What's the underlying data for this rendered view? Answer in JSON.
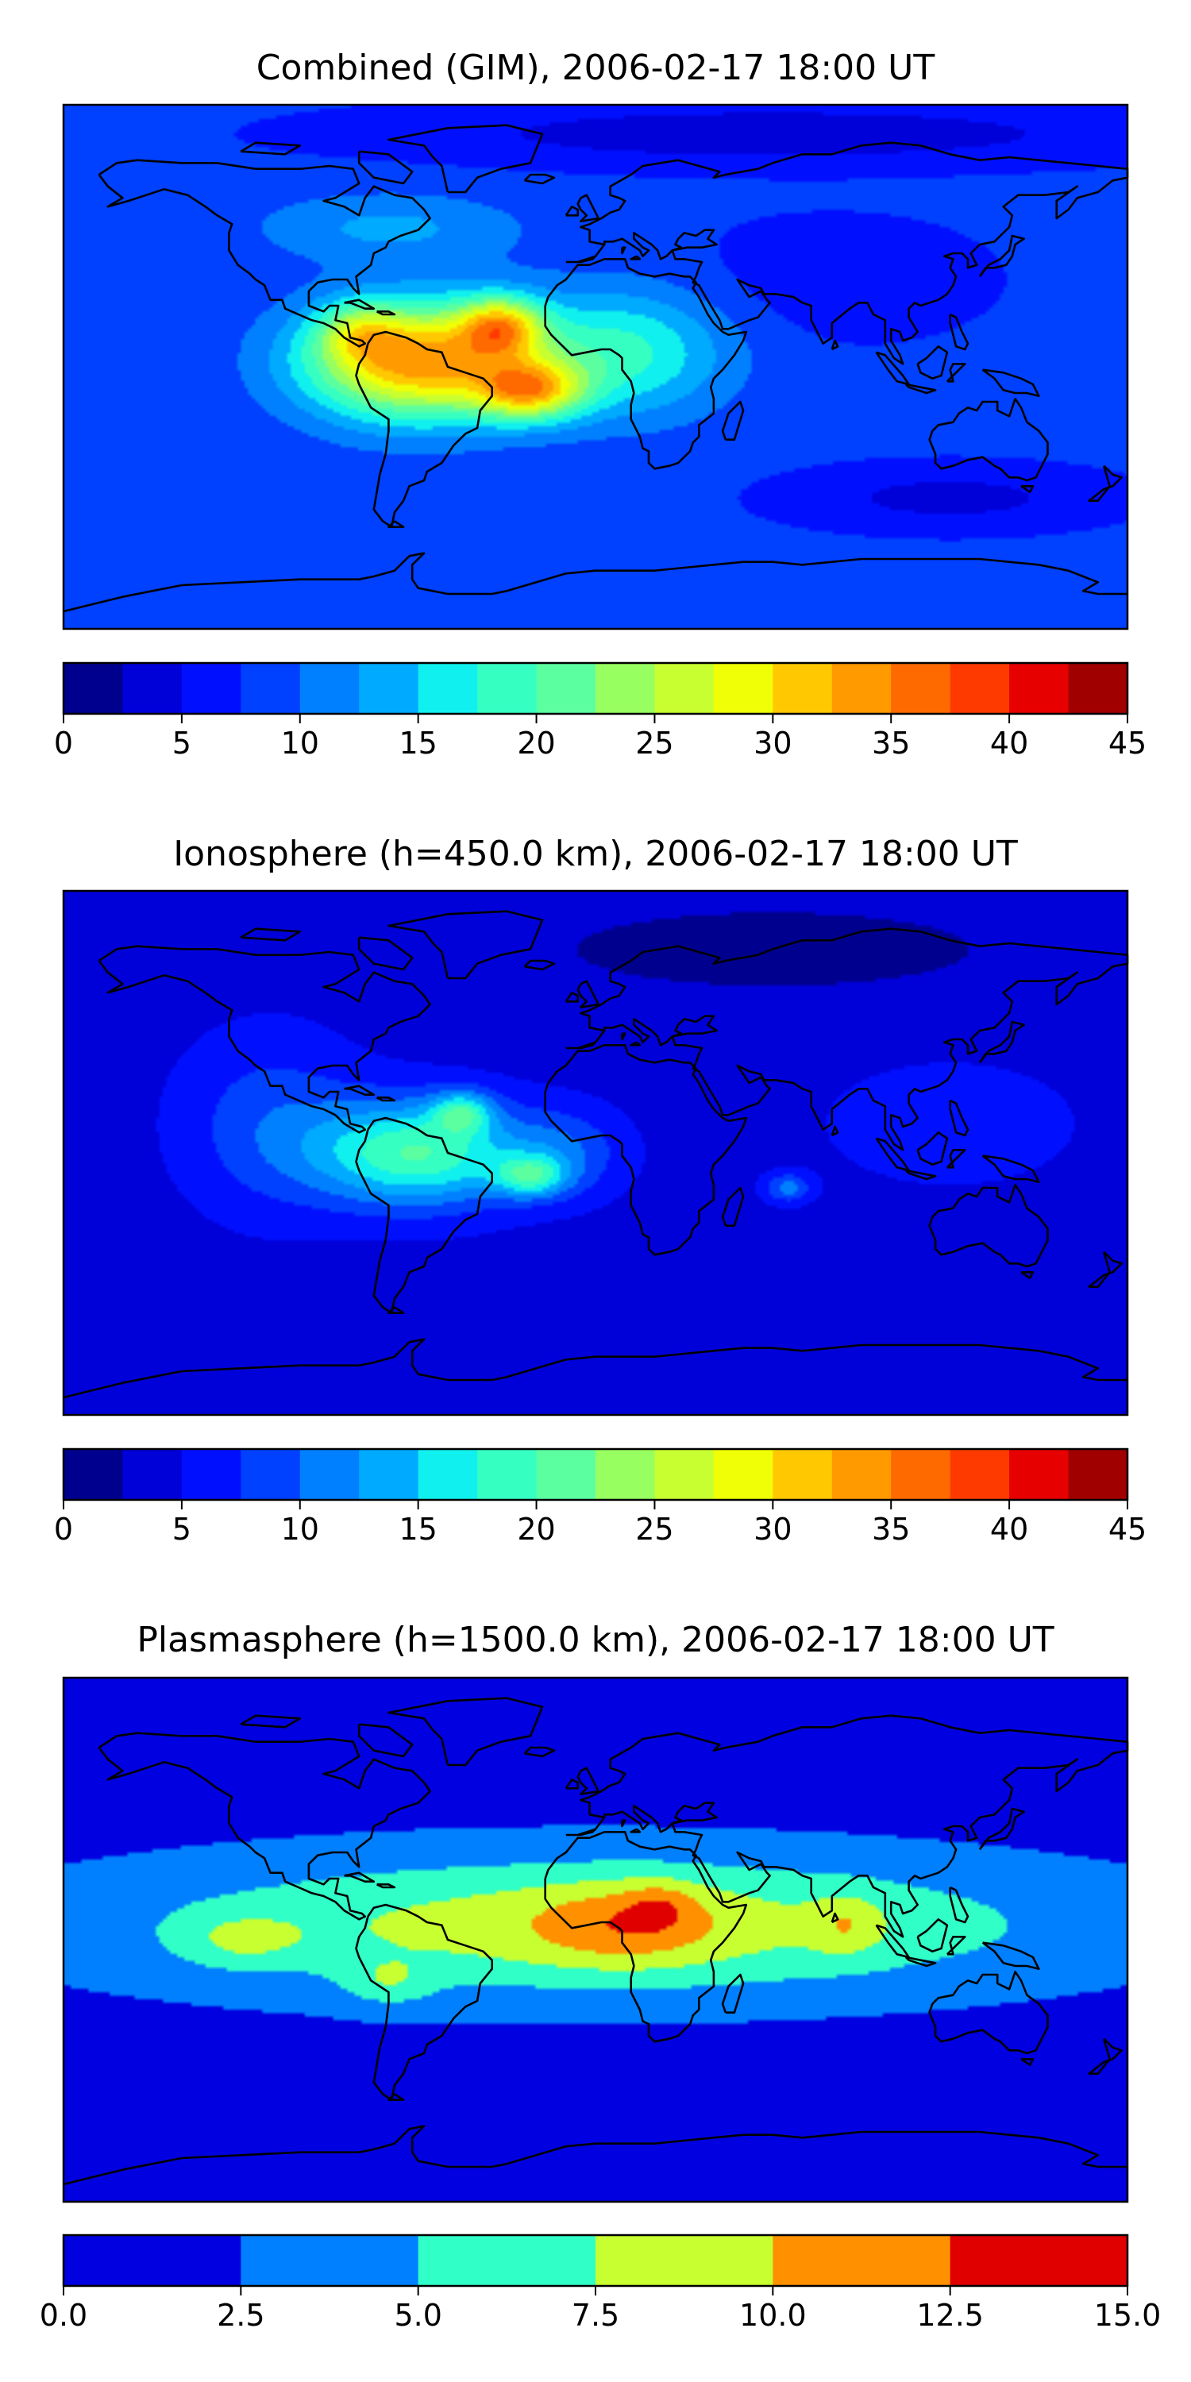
{
  "panels": [
    {
      "title": "Combined (GIM), 2006-02-17 18:00 UT",
      "colorbar": {
        "levels": [
          0,
          2.5,
          5,
          7.5,
          10,
          12.5,
          15,
          17.5,
          20,
          22.5,
          25,
          27.5,
          30,
          32.5,
          35,
          37.5,
          40,
          42.5,
          45
        ],
        "colors": [
          "#00008f",
          "#0000d9",
          "#0010ff",
          "#0040ff",
          "#0080ff",
          "#00aaff",
          "#10f0ee",
          "#36ffc2",
          "#5cffa0",
          "#98ff60",
          "#c8ff30",
          "#f0ff06",
          "#ffc800",
          "#ff9a00",
          "#ff6a00",
          "#ff3a00",
          "#e60000",
          "#a00000"
        ],
        "tick_values": [
          0,
          5,
          10,
          15,
          20,
          25,
          30,
          35,
          40,
          45
        ],
        "tick_labels": [
          "0",
          "5",
          "10",
          "15",
          "20",
          "25",
          "30",
          "35",
          "40",
          "45"
        ]
      },
      "field": {
        "background": 8,
        "blobs": [
          {
            "lon": -60,
            "lat": 2,
            "amp": 26,
            "slon": 38,
            "slat": 20
          },
          {
            "lon": -32,
            "lat": 14,
            "amp": 16,
            "slon": 14,
            "slat": 10
          },
          {
            "lon": -22,
            "lat": -8,
            "amp": 18,
            "slon": 18,
            "slat": 10
          },
          {
            "lon": -80,
            "lat": 12,
            "amp": 8,
            "slon": 14,
            "slat": 10
          },
          {
            "lon": 10,
            "lat": 5,
            "amp": 10,
            "slon": 35,
            "slat": 22
          },
          {
            "lon": -70,
            "lat": 48,
            "amp": 5,
            "slon": 45,
            "slat": 12
          },
          {
            "lon": 120,
            "lat": -45,
            "amp": -4,
            "slon": 50,
            "slat": 10
          },
          {
            "lon": 60,
            "lat": 80,
            "amp": -5,
            "slon": 120,
            "slat": 10
          },
          {
            "lon": 80,
            "lat": 30,
            "amp": -2,
            "slon": 50,
            "slat": 20
          }
        ]
      }
    },
    {
      "title": "Ionosphere  (h=450.0 km), 2006-02-17 18:00 UT",
      "colorbar": {
        "levels": [
          0,
          2.5,
          5,
          7.5,
          10,
          12.5,
          15,
          17.5,
          20,
          22.5,
          25,
          27.5,
          30,
          32.5,
          35,
          37.5,
          40,
          42.5,
          45
        ],
        "colors": [
          "#00008f",
          "#0000d9",
          "#0010ff",
          "#0040ff",
          "#0080ff",
          "#00aaff",
          "#10f0ee",
          "#36ffc2",
          "#5cffa0",
          "#98ff60",
          "#c8ff30",
          "#f0ff06",
          "#ffc800",
          "#ff9a00",
          "#ff6a00",
          "#ff3a00",
          "#e60000",
          "#a00000"
        ],
        "tick_values": [
          0,
          5,
          10,
          15,
          20,
          25,
          30,
          35,
          40,
          45
        ],
        "tick_labels": [
          "0",
          "5",
          "10",
          "15",
          "20",
          "25",
          "30",
          "35",
          "40",
          "45"
        ]
      },
      "field": {
        "background": 4,
        "blobs": [
          {
            "lon": -60,
            "lat": 0,
            "amp": 16,
            "slon": 35,
            "slat": 18
          },
          {
            "lon": -45,
            "lat": 14,
            "amp": 10,
            "slon": 10,
            "slat": 7
          },
          {
            "lon": -22,
            "lat": -8,
            "amp": 11,
            "slon": 12,
            "slat": 7
          },
          {
            "lon": -10,
            "lat": 0,
            "amp": 5,
            "slon": 20,
            "slat": 15
          },
          {
            "lon": 65,
            "lat": -12,
            "amp": 7,
            "slon": 8,
            "slat": 5
          },
          {
            "lon": -110,
            "lat": 10,
            "amp": 5,
            "slon": 30,
            "slat": 30
          },
          {
            "lon": 120,
            "lat": 10,
            "amp": 3,
            "slon": 40,
            "slat": 20
          },
          {
            "lon": 60,
            "lat": 70,
            "amp": -3,
            "slon": 80,
            "slat": 15
          }
        ]
      }
    },
    {
      "title": "Plasmasphere (h=1500.0 km), 2006-02-17 18:00 UT",
      "colorbar": {
        "levels": [
          0,
          2.5,
          5,
          7.5,
          10,
          12.5,
          15
        ],
        "colors": [
          "#0000e0",
          "#0080ff",
          "#30ffc8",
          "#c8ff30",
          "#ff9000",
          "#e00000"
        ],
        "tick_values": [
          0,
          2.5,
          5,
          7.5,
          10,
          12.5,
          15
        ],
        "tick_labels": [
          "0.0",
          "2.5",
          "5.0",
          "7.5",
          "10.0",
          "12.5",
          "15.0"
        ]
      },
      "field": {
        "background": 1.5,
        "blobs": [
          {
            "lon": 0,
            "lat": 5,
            "amp": 7.5,
            "slon": 160,
            "slat": 24
          },
          {
            "lon": 10,
            "lat": 5,
            "amp": 3.5,
            "slon": 30,
            "slat": 14
          },
          {
            "lon": 22,
            "lat": 12,
            "amp": 2.5,
            "slon": 12,
            "slat": 8
          },
          {
            "lon": -120,
            "lat": 0,
            "amp": 3,
            "slon": 20,
            "slat": 9
          },
          {
            "lon": -70,
            "lat": -15,
            "amp": 3,
            "slon": 15,
            "slat": 8
          },
          {
            "lon": 85,
            "lat": 5,
            "amp": 3,
            "slon": 12,
            "slat": 10
          }
        ]
      }
    }
  ],
  "map_style": {
    "coastline_color": "#000000",
    "frame_color": "#000000",
    "lon_range": [
      -180,
      180
    ],
    "lat_range": [
      -90,
      90
    ]
  }
}
